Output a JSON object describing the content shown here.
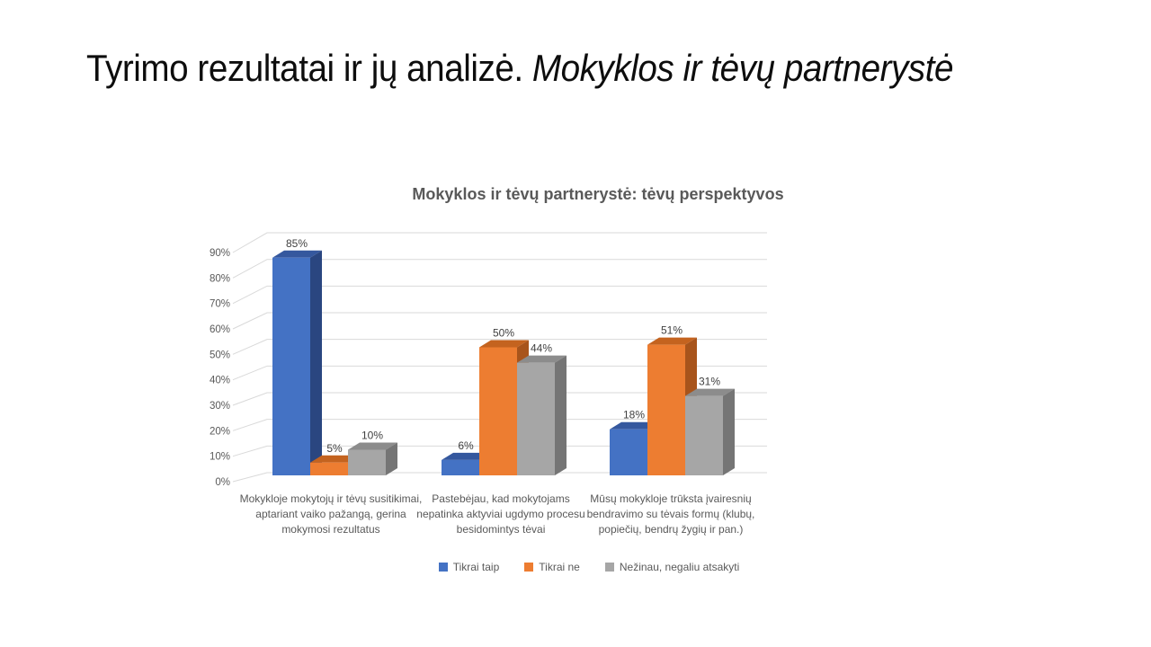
{
  "slide": {
    "title_regular": "Tyrimo rezultatai ir jų analizė. ",
    "title_italic": "Mokyklos ir tėvų partnerystė"
  },
  "chart_data": {
    "type": "bar",
    "subtype": "3d-clustered-column",
    "title": "Mokyklos ir tėvų partnerystė: tėvų perspektyvos",
    "categories": [
      "Mokykloje mokytojų ir tėvų susitikimai, aptariant vaiko pažangą, gerina mokymosi rezultatus",
      "Pastebėjau, kad mokytojams nepatinka aktyviai ugdymo procesu besidomintys tėvai",
      "Mūsų mokykloje trūksta įvairesnių bendravimo su tėvais formų (klubų, popiečių, bendrų žygių ir pan.)"
    ],
    "series": [
      {
        "name": "Tikrai taip",
        "color": "#4472C4",
        "shade_top": "#35589E",
        "shade_side": "#2A4680",
        "values": [
          85,
          6,
          18
        ]
      },
      {
        "name": "Tikrai ne",
        "color": "#ED7D31",
        "shade_top": "#C4631F",
        "shade_side": "#A8541B",
        "values": [
          5,
          50,
          51
        ]
      },
      {
        "name": "Nežinau, negaliu atsakyti",
        "color": "#A6A6A6",
        "shade_top": "#8C8C8C",
        "shade_side": "#757575",
        "values": [
          10,
          44,
          31
        ]
      }
    ],
    "ylim": [
      0,
      90
    ],
    "ytick_step": 10,
    "tick_suffix": "%",
    "data_label_suffix": "%",
    "grid": true,
    "legend_position": "bottom",
    "style": {
      "gridline_color": "#D9D9D9",
      "tick_label_color": "#595959",
      "data_label_color": "#404040",
      "category_label_color": "#595959",
      "title_color": "#595959"
    }
  }
}
